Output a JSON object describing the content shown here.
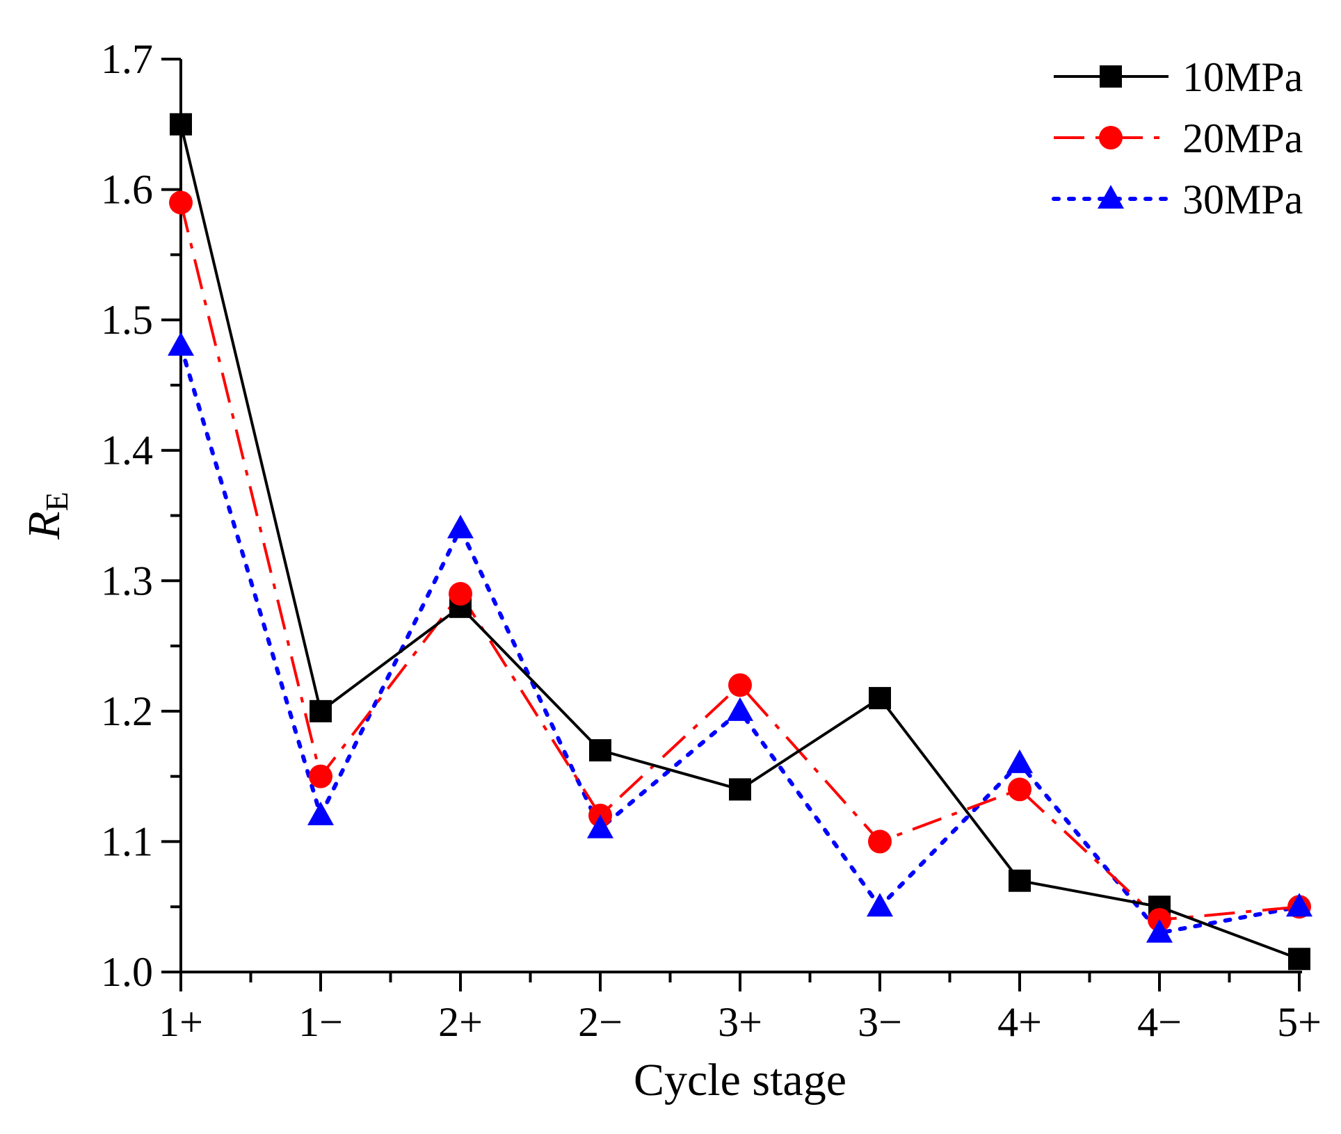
{
  "chart_data": {
    "type": "line",
    "title": "",
    "xlabel": "Cycle stage",
    "ylabel_main": "R",
    "ylabel_sub": "E",
    "categories": [
      "1+",
      "1−",
      "2+",
      "2−",
      "3+",
      "3−",
      "4+",
      "4−",
      "5+"
    ],
    "ylim": [
      1.0,
      1.7
    ],
    "yticks": [
      "1.0",
      "1.1",
      "1.2",
      "1.3",
      "1.4",
      "1.5",
      "1.6",
      "1.7"
    ],
    "legend_position": "top-right",
    "grid": false,
    "series": [
      {
        "name": "10MPa",
        "color": "#000000",
        "marker": "square",
        "line": "solid",
        "values": [
          1.65,
          1.2,
          1.28,
          1.17,
          1.14,
          1.21,
          1.07,
          1.05,
          1.01
        ]
      },
      {
        "name": "20MPa",
        "color": "#ff0000",
        "marker": "circle",
        "line": "dashdot",
        "values": [
          1.59,
          1.15,
          1.29,
          1.12,
          1.22,
          1.1,
          1.14,
          1.04,
          1.05
        ]
      },
      {
        "name": "30MPa",
        "color": "#0000ff",
        "marker": "triangle",
        "line": "dotted",
        "values": [
          1.48,
          1.12,
          1.34,
          1.11,
          1.2,
          1.05,
          1.16,
          1.03,
          1.05
        ]
      }
    ]
  }
}
